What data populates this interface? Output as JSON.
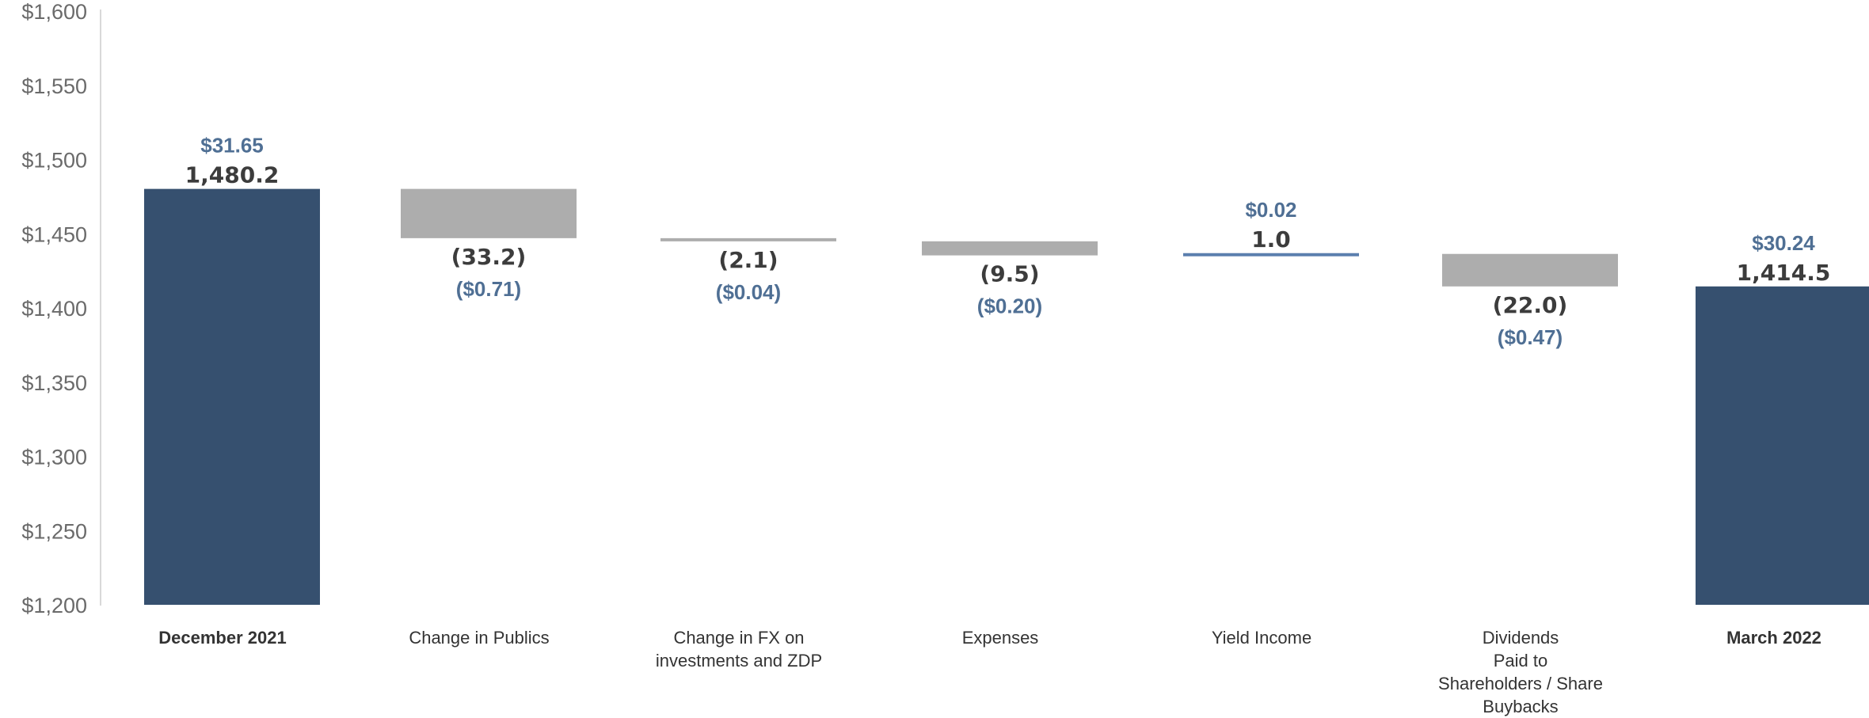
{
  "chart_data": {
    "type": "waterfall",
    "title": "",
    "xlabel": "",
    "ylabel": "",
    "ylim": [
      1200,
      1600
    ],
    "yticks": [
      "$1,200",
      "$1,250",
      "$1,300",
      "$1,350",
      "$1,400",
      "$1,450",
      "$1,500",
      "$1,550",
      "$1,600"
    ],
    "ytick_values": [
      1200,
      1250,
      1300,
      1350,
      1400,
      1450,
      1500,
      1550,
      1600
    ],
    "grid": false,
    "legend": "none",
    "colors": {
      "total": "#36506f",
      "decrease": "#adadad",
      "increase": "#5b7fae"
    },
    "bars": [
      {
        "category": [
          "December 2021"
        ],
        "kind": "total",
        "start": 1200,
        "end": 1480.2,
        "value_label": "1,480.2",
        "per_share_label": "$31.65"
      },
      {
        "category": [
          "Change in Publics"
        ],
        "kind": "decrease",
        "start": 1480.2,
        "end": 1447.0,
        "value_label": "(33.2)",
        "per_share_label": "($0.71)"
      },
      {
        "category": [
          "Change in FX on",
          "investments and ZDP"
        ],
        "kind": "decrease",
        "start": 1447.0,
        "end": 1444.9,
        "value_label": "(2.1)",
        "per_share_label": "($0.04)"
      },
      {
        "category": [
          "Expenses"
        ],
        "kind": "decrease",
        "start": 1444.9,
        "end": 1435.4,
        "value_label": "(9.5)",
        "per_share_label": "($0.20)"
      },
      {
        "category": [
          "Yield Income"
        ],
        "kind": "increase",
        "start": 1435.4,
        "end": 1436.4,
        "value_label": "1.0",
        "per_share_label": "$0.02"
      },
      {
        "category": [
          "Dividends",
          "Paid to",
          "Shareholders / Share",
          "Buybacks"
        ],
        "kind": "decrease",
        "start": 1436.4,
        "end": 1414.5,
        "value_label": "(22.0)",
        "per_share_label": "($0.47)"
      },
      {
        "category": [
          "March 2022"
        ],
        "kind": "total",
        "start": 1200,
        "end": 1414.5,
        "value_label": "1,414.5",
        "per_share_label": "$30.24"
      }
    ]
  }
}
